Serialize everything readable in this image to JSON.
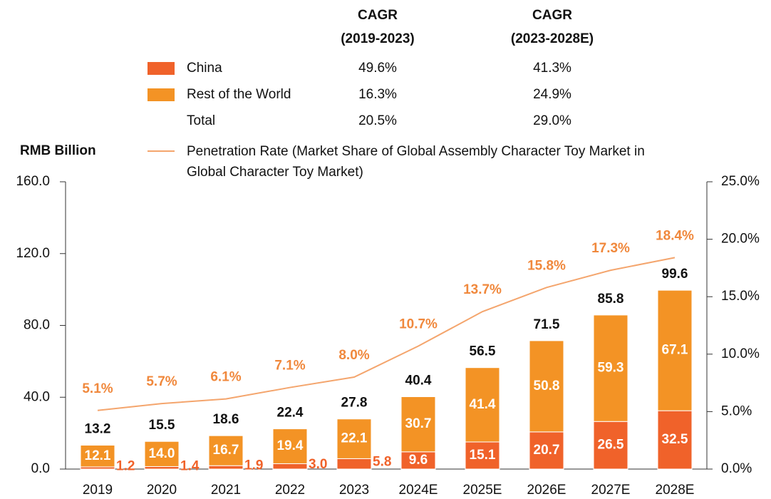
{
  "chart_data": {
    "type": "bar",
    "y_label": "RMB Billion",
    "categories": [
      "2019",
      "2020",
      "2021",
      "2022",
      "2023",
      "2024E",
      "2025E",
      "2026E",
      "2027E",
      "2028E"
    ],
    "series": [
      {
        "name": "China",
        "color": "#f0622a",
        "values": [
          1.2,
          1.4,
          1.9,
          3.0,
          5.8,
          9.6,
          15.1,
          20.7,
          26.5,
          32.5
        ],
        "value_labels": [
          "1.2",
          "1.4",
          "1.9",
          "3.0",
          "5.8",
          "9.6",
          "15.1",
          "20.7",
          "26.5",
          "32.5"
        ]
      },
      {
        "name": "Rest of the World",
        "color": "#f39325",
        "values": [
          12.1,
          14.0,
          16.7,
          19.4,
          22.1,
          30.7,
          41.4,
          50.8,
          59.3,
          67.1
        ],
        "value_labels": [
          "12.1",
          "14.0",
          "16.7",
          "19.4",
          "22.1",
          "30.7",
          "41.4",
          "50.8",
          "59.3",
          "67.1"
        ]
      },
      {
        "name": "Penetration Rate (Market Share of Global Assembly Character Toy Market in Global Character Toy Market)",
        "type": "line",
        "axis": "y2",
        "color": "#f4a56d",
        "values": [
          5.1,
          5.7,
          6.1,
          7.1,
          8.0,
          10.7,
          13.7,
          15.8,
          17.3,
          18.4
        ],
        "value_labels": [
          "5.1%",
          "5.7%",
          "6.1%",
          "7.1%",
          "8.0%",
          "10.7%",
          "13.7%",
          "15.8%",
          "17.3%",
          "18.4%"
        ]
      }
    ],
    "totals": {
      "values": [
        13.2,
        15.5,
        18.6,
        22.4,
        27.8,
        40.4,
        56.5,
        71.5,
        85.8,
        99.6
      ],
      "value_labels": [
        "13.2",
        "15.5",
        "18.6",
        "22.4",
        "27.8",
        "40.4",
        "56.5",
        "71.5",
        "85.8",
        "99.6"
      ]
    },
    "cagr_table": {
      "headers": [
        [
          "CAGR",
          "(2019-2023)"
        ],
        [
          "CAGR",
          "(2023-2028E)"
        ]
      ],
      "total_label": "Total",
      "rows": [
        [
          "49.6%",
          "41.3%"
        ],
        [
          "16.3%",
          "24.9%"
        ],
        [
          "20.5%",
          "29.0%"
        ]
      ]
    },
    "ylim": [
      0,
      160
    ],
    "yticks": [
      {
        "value": 0,
        "label": "0.0"
      },
      {
        "value": 40,
        "label": "40.0"
      },
      {
        "value": 80,
        "label": "80.0"
      },
      {
        "value": 120,
        "label": "120.0"
      },
      {
        "value": 160,
        "label": "160.0"
      }
    ],
    "y2lim": [
      0,
      25
    ],
    "y2ticks": [
      {
        "value": 0,
        "label": "0.0%"
      },
      {
        "value": 5,
        "label": "5.0%"
      },
      {
        "value": 10,
        "label": "10.0%"
      },
      {
        "value": 15,
        "label": "15.0%"
      },
      {
        "value": 20,
        "label": "20.0%"
      },
      {
        "value": 25,
        "label": "25.0%"
      }
    ],
    "grid": false
  }
}
